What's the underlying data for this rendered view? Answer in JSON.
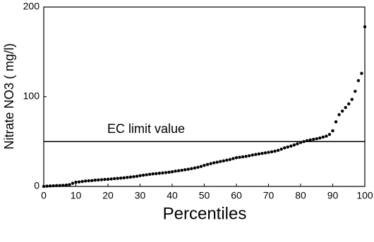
{
  "chart_data": {
    "type": "scatter",
    "xlabel": "Percentiles",
    "ylabel": "Nitrate NO3 ( mg/l)",
    "annotation": "EC limit value",
    "limit": 50,
    "color": "#000000",
    "x": [
      0,
      1,
      2,
      3,
      4,
      5,
      6,
      7,
      8,
      9,
      10,
      11,
      12,
      13,
      14,
      15,
      16,
      17,
      18,
      19,
      20,
      21,
      22,
      23,
      24,
      25,
      26,
      27,
      28,
      29,
      30,
      31,
      32,
      33,
      34,
      35,
      36,
      37,
      38,
      39,
      40,
      41,
      42,
      43,
      44,
      45,
      46,
      47,
      48,
      49,
      50,
      51,
      52,
      53,
      54,
      55,
      56,
      57,
      58,
      59,
      60,
      61,
      62,
      63,
      64,
      65,
      66,
      67,
      68,
      69,
      70,
      71,
      72,
      73,
      74,
      75,
      76,
      77,
      78,
      79,
      80,
      81,
      82,
      83,
      84,
      85,
      86,
      87,
      88,
      89,
      90,
      91,
      92,
      93,
      94,
      95,
      96,
      97,
      98,
      99,
      100
    ],
    "values": [
      0,
      0.3,
      0.5,
      0.7,
      0.9,
      1,
      1.2,
      1.5,
      2,
      3.5,
      4.7,
      5,
      5.5,
      6,
      6.3,
      6.5,
      7,
      7.2,
      7.5,
      7.8,
      8,
      8.3,
      8.7,
      9,
      9.3,
      9.6,
      10,
      10.4,
      10.8,
      11.3,
      12,
      12.5,
      13,
      13.5,
      14,
      14.3,
      14.7,
      15,
      15.4,
      15.8,
      16.3,
      17,
      17.5,
      18,
      18.6,
      19.2,
      19.8,
      20.5,
      21.3,
      22.3,
      23.5,
      24.5,
      25.4,
      26.3,
      27,
      27.8,
      28.5,
      29.3,
      30,
      31,
      32,
      32.5,
      33,
      33.5,
      34.2,
      35,
      35.6,
      36.2,
      36.8,
      37.4,
      38,
      38.6,
      39.3,
      40.2,
      41.5,
      43,
      44,
      45,
      46.2,
      47.5,
      49,
      50,
      51,
      51.8,
      52.5,
      53.2,
      54,
      55,
      56,
      58,
      62,
      72,
      80,
      84,
      88,
      92,
      97,
      106,
      118,
      126,
      178
    ],
    "xlim": [
      0,
      100
    ],
    "xticks": [
      0,
      10,
      20,
      30,
      40,
      50,
      60,
      70,
      80,
      90,
      100
    ],
    "ylim": [
      0,
      200
    ],
    "yticks": [
      0,
      100,
      200
    ]
  }
}
